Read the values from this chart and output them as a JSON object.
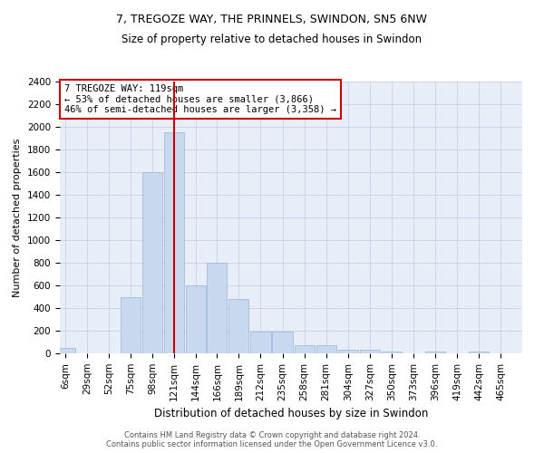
{
  "title_line1": "7, TREGOZE WAY, THE PRINNELS, SWINDON, SN5 6NW",
  "title_line2": "Size of property relative to detached houses in Swindon",
  "xlabel": "Distribution of detached houses by size in Swindon",
  "ylabel": "Number of detached properties",
  "annotation_line1": "7 TREGOZE WAY: 119sqm",
  "annotation_line2": "← 53% of detached houses are smaller (3,866)",
  "annotation_line3": "46% of semi-detached houses are larger (3,358) →",
  "footer_line1": "Contains HM Land Registry data © Crown copyright and database right 2024.",
  "footer_line2": "Contains public sector information licensed under the Open Government Licence v3.0.",
  "bar_color": "#c8d8ef",
  "bar_edgecolor": "#9ab4d4",
  "highlight_color": "#cc0000",
  "annotation_box_edgecolor": "#cc0000",
  "background_color": "#ffffff",
  "grid_color": "#c0cce0",
  "ax_facecolor": "#e8eef8",
  "bin_labels": [
    "6sqm",
    "29sqm",
    "52sqm",
    "75sqm",
    "98sqm",
    "121sqm",
    "144sqm",
    "166sqm",
    "189sqm",
    "212sqm",
    "235sqm",
    "258sqm",
    "281sqm",
    "304sqm",
    "327sqm",
    "350sqm",
    "373sqm",
    "396sqm",
    "419sqm",
    "442sqm",
    "465sqm"
  ],
  "bin_edges": [
    6,
    29,
    52,
    75,
    98,
    121,
    144,
    166,
    189,
    212,
    235,
    258,
    281,
    304,
    327,
    350,
    373,
    396,
    419,
    442,
    465
  ],
  "bar_heights": [
    50,
    0,
    0,
    500,
    1600,
    1950,
    600,
    800,
    480,
    190,
    190,
    75,
    75,
    30,
    30,
    15,
    0,
    15,
    0,
    15
  ],
  "vline_x": 121,
  "ylim": [
    0,
    2400
  ],
  "yticks": [
    0,
    200,
    400,
    600,
    800,
    1000,
    1200,
    1400,
    1600,
    1800,
    2000,
    2200,
    2400
  ],
  "title_fontsize": 9,
  "subtitle_fontsize": 8.5,
  "ylabel_fontsize": 8,
  "xlabel_fontsize": 8.5,
  "tick_fontsize": 7.5,
  "ann_fontsize": 7.5,
  "footer_fontsize": 6
}
